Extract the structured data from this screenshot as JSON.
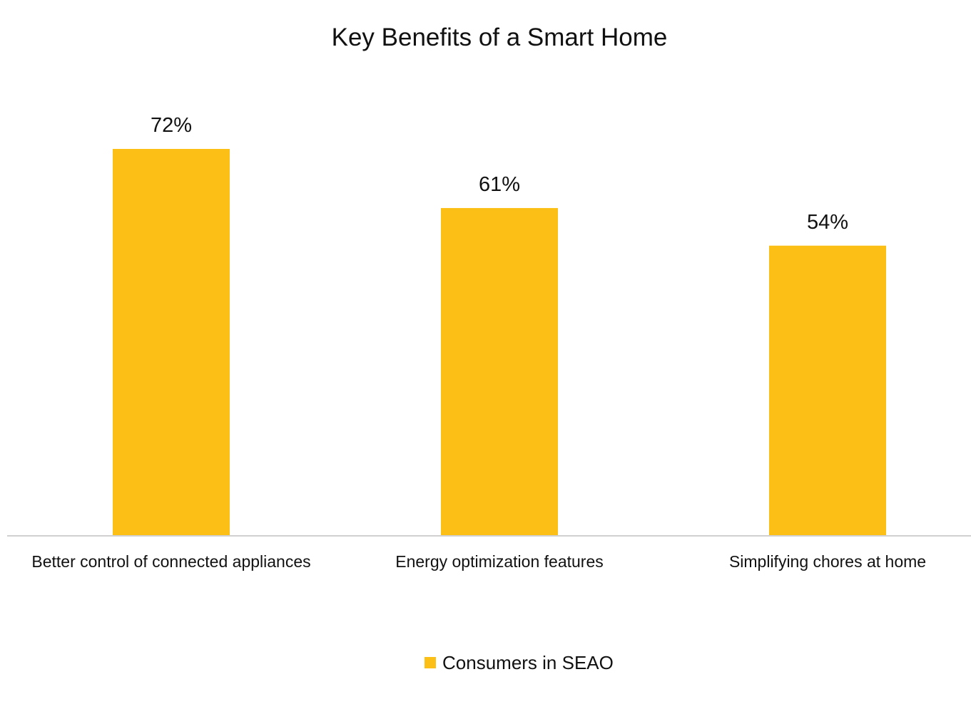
{
  "chart_data": {
    "type": "bar",
    "title": "Key Benefits of a Smart Home",
    "xlabel": "",
    "ylabel": "",
    "categories": [
      "Better control of connected appliances",
      "Energy optimization features",
      "Simplifying chores at home"
    ],
    "series": [
      {
        "name": "Consumers in SEAO",
        "values": [
          72,
          61,
          54
        ],
        "labels": [
          "72%",
          "61%",
          "54%"
        ],
        "color": "#FBBF15"
      }
    ],
    "ylim": [
      0,
      80
    ],
    "grid": false,
    "legend": "bottom-center",
    "axis_color": "#D0D0D0"
  }
}
